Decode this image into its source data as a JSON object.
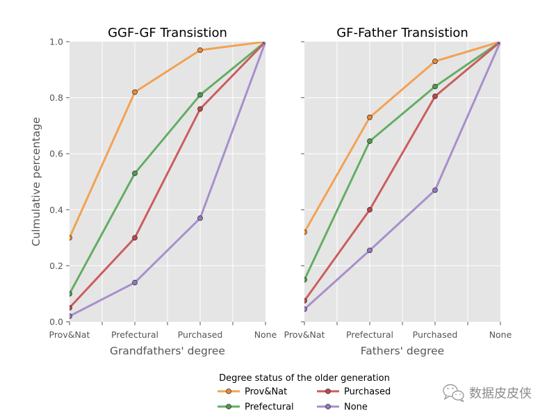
{
  "watermark": {
    "text": "数据皮皮侠",
    "icon": "wechat-icon",
    "color": "#8c8c8c"
  },
  "legend": {
    "title": "Degree status of the older generation",
    "entries": [
      {
        "label": "Prov&Nat",
        "color": "#f2a254",
        "marker_color": "#ee8a33"
      },
      {
        "label": "Prefectural",
        "color": "#63ad63",
        "marker_color": "#4f9c4f"
      },
      {
        "label": "Purchased",
        "color": "#cb5d5d",
        "marker_color": "#c24747"
      },
      {
        "label": "None",
        "color": "#a78fcb",
        "marker_color": "#9677c2"
      }
    ]
  },
  "chart_data": [
    {
      "type": "line",
      "title": "GGF-GF Transistion",
      "xlabel": "Grandfathers' degree",
      "ylabel": "Culmulative percentage",
      "categories": [
        "Prov&Nat",
        "Prefectural",
        "Purchased",
        "None"
      ],
      "ylim": [
        0,
        1
      ],
      "yticks": [
        0,
        0.2,
        0.4,
        0.6,
        0.8,
        1.0
      ],
      "ytick_labels": [
        "0.0",
        "0.2",
        "0.4",
        "0.6",
        "0.8",
        "1.0"
      ],
      "grid": true,
      "style": {
        "background": "#e5e5e5",
        "grid": "#ffffff",
        "tick": "#555555"
      },
      "series": [
        {
          "name": "Prov&Nat",
          "values": [
            0.3,
            0.82,
            0.97,
            1.0
          ],
          "color": "#f2a254",
          "marker_color": "#ee8a33"
        },
        {
          "name": "Prefectural",
          "values": [
            0.1,
            0.53,
            0.81,
            1.0
          ],
          "color": "#63ad63",
          "marker_color": "#4f9c4f"
        },
        {
          "name": "Purchased",
          "values": [
            0.05,
            0.3,
            0.76,
            1.0
          ],
          "color": "#cb5d5d",
          "marker_color": "#c24747"
        },
        {
          "name": "None",
          "values": [
            0.02,
            0.14,
            0.37,
            1.0
          ],
          "color": "#a78fcb",
          "marker_color": "#9677c2"
        }
      ]
    },
    {
      "type": "line",
      "title": "GF-Father Transistion",
      "xlabel": "Fathers' degree",
      "ylabel": "",
      "categories": [
        "Prov&Nat",
        "Prefectural",
        "Purchased",
        "None"
      ],
      "ylim": [
        0,
        1
      ],
      "yticks": [
        0,
        0.2,
        0.4,
        0.6,
        0.8,
        1.0
      ],
      "grid": true,
      "style": {
        "background": "#e5e5e5",
        "grid": "#ffffff",
        "tick": "#555555"
      },
      "series": [
        {
          "name": "Prov&Nat",
          "values": [
            0.32,
            0.73,
            0.93,
            1.0
          ],
          "color": "#f2a254",
          "marker_color": "#ee8a33"
        },
        {
          "name": "Prefectural",
          "values": [
            0.15,
            0.645,
            0.84,
            1.0
          ],
          "color": "#63ad63",
          "marker_color": "#4f9c4f"
        },
        {
          "name": "Purchased",
          "values": [
            0.075,
            0.4,
            0.805,
            1.0
          ],
          "color": "#cb5d5d",
          "marker_color": "#c24747"
        },
        {
          "name": "None",
          "values": [
            0.045,
            0.255,
            0.47,
            1.0
          ],
          "color": "#a78fcb",
          "marker_color": "#9677c2"
        }
      ]
    }
  ]
}
